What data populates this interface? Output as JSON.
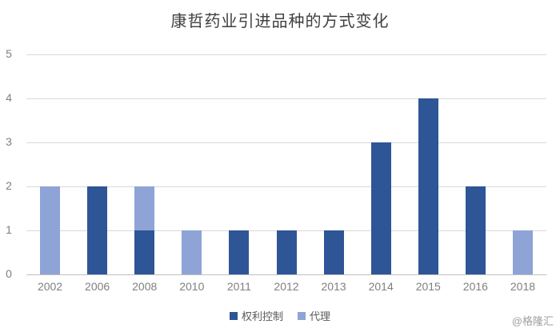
{
  "title": "康哲药业引进品种的方式变化",
  "watermark": "@格隆汇",
  "chart_data": {
    "type": "bar",
    "stacked": true,
    "title": "康哲药业引进品种的方式变化",
    "categories": [
      "2002",
      "2006",
      "2008",
      "2010",
      "2011",
      "2012",
      "2013",
      "2014",
      "2015",
      "2016",
      "2018"
    ],
    "series": [
      {
        "name": "权利控制",
        "color": "#2E5596",
        "values": [
          0,
          2,
          1,
          0,
          1,
          1,
          1,
          3,
          4,
          2,
          0
        ]
      },
      {
        "name": "代理",
        "color": "#8EA3D6",
        "values": [
          2,
          0,
          1,
          1,
          0,
          0,
          0,
          0,
          0,
          0,
          1
        ]
      }
    ],
    "xlabel": "",
    "ylabel": "",
    "ylim": [
      0,
      5
    ],
    "yticks": [
      0,
      1,
      2,
      3,
      4,
      5
    ],
    "grid": true,
    "legend_position": "bottom"
  }
}
